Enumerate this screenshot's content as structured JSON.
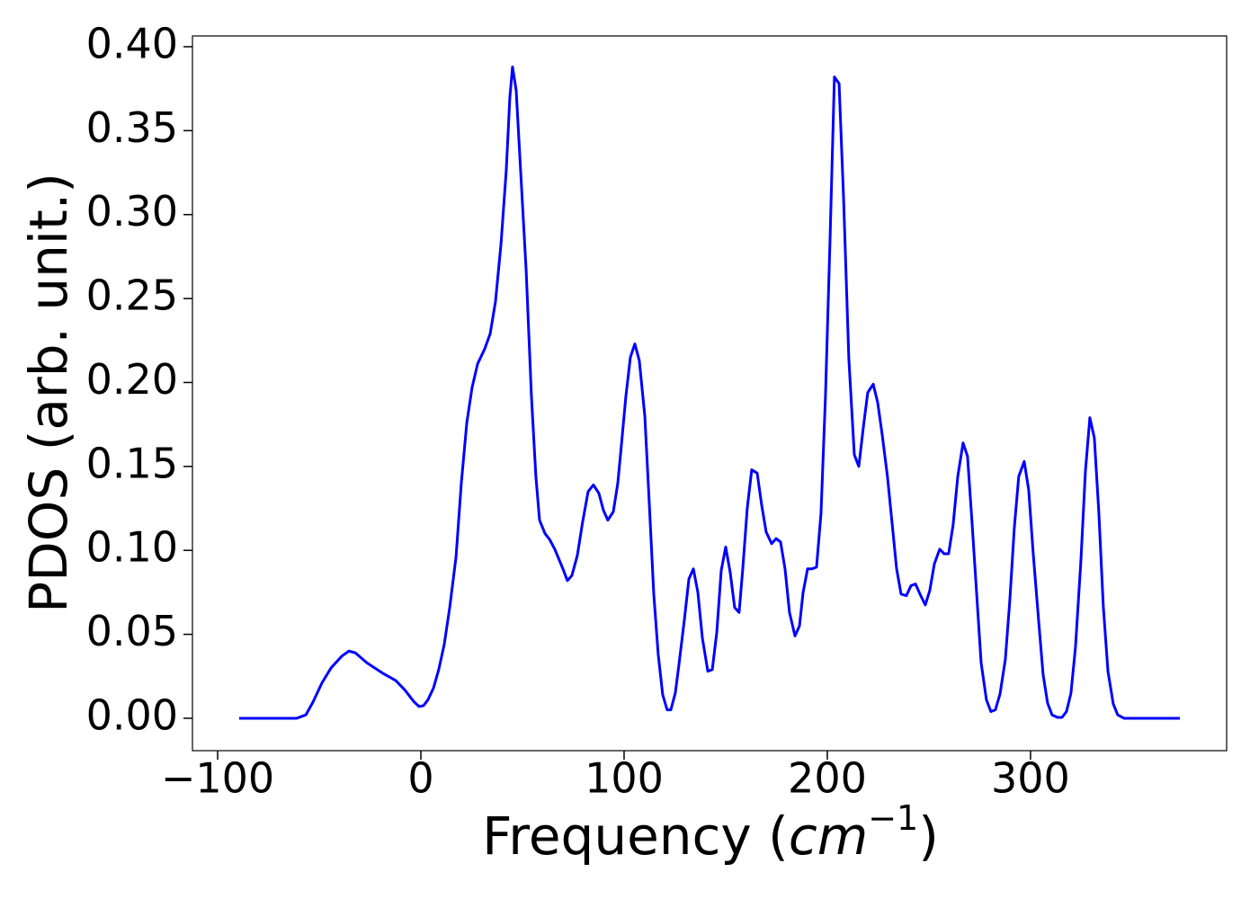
{
  "chart_data": {
    "type": "line",
    "xlabel": [
      "Frequency (",
      "cm",
      "−1",
      ")"
    ],
    "ylabel": "PDOS (arb. unit.)",
    "xlim": [
      -112.4,
      396.5
    ],
    "ylim": [
      -0.0193,
      0.4064
    ],
    "xticks": [
      {
        "value": -100,
        "label": "−100"
      },
      0,
      100,
      200,
      300
    ],
    "yticks": [
      {
        "value": 0,
        "label": "0.00"
      },
      {
        "value": 0.05,
        "label": "0.05"
      },
      {
        "value": 0.1,
        "label": "0.10"
      },
      {
        "value": 0.15,
        "label": "0.15"
      },
      {
        "value": 0.2,
        "label": "0.20"
      },
      {
        "value": 0.25,
        "label": "0.25"
      },
      {
        "value": 0.3,
        "label": "0.30"
      },
      {
        "value": 0.35,
        "label": "0.35"
      },
      {
        "value": 0.4,
        "label": "0.40"
      }
    ],
    "grid": false,
    "x": [
      -89.4,
      -61.1,
      -56.6,
      -53.1,
      -48.7,
      -44.2,
      -38.9,
      -35.4,
      -32.3,
      -26.5,
      -19.0,
      -12.4,
      -8.0,
      -3.5,
      -0.9,
      1.3,
      3.5,
      6.2,
      8.8,
      11.5,
      14.2,
      17.3,
      19.9,
      22.6,
      25.2,
      27.9,
      31.4,
      34.1,
      36.7,
      39.4,
      42.0,
      43.8,
      45.1,
      46.9,
      49.1,
      51.8,
      54.4,
      56.6,
      58.4,
      61.1,
      63.3,
      65.9,
      69.9,
      72.1,
      74.3,
      77.0,
      79.6,
      82.3,
      84.9,
      87.6,
      89.8,
      92.0,
      94.7,
      96.9,
      98.7,
      100.9,
      103.1,
      105.3,
      107.5,
      110.2,
      112.4,
      114.6,
      116.8,
      119.0,
      121.2,
      123.0,
      125.2,
      127.0,
      129.6,
      131.9,
      134.1,
      136.3,
      138.5,
      141.2,
      143.4,
      145.6,
      147.8,
      150.0,
      152.2,
      154.4,
      156.6,
      158.4,
      160.6,
      162.8,
      165.5,
      167.7,
      169.9,
      172.6,
      174.8,
      177.0,
      179.2,
      181.4,
      184.1,
      186.3,
      188.1,
      190.3,
      192.5,
      194.7,
      196.9,
      199.1,
      201.3,
      203.5,
      205.8,
      208.0,
      210.6,
      213.3,
      215.5,
      217.7,
      219.9,
      222.6,
      224.8,
      227.0,
      229.6,
      231.9,
      234.1,
      236.3,
      238.9,
      241.2,
      243.4,
      245.6,
      248.2,
      250.4,
      252.7,
      255.3,
      257.5,
      259.7,
      261.9,
      264.2,
      266.8,
      269.0,
      271.2,
      273.5,
      275.7,
      278.3,
      280.5,
      282.7,
      285.0,
      287.6,
      289.8,
      292.0,
      294.2,
      296.9,
      299.1,
      301.3,
      304.0,
      306.2,
      308.4,
      310.6,
      313.3,
      315.5,
      317.7,
      319.9,
      322.1,
      324.8,
      327.0,
      329.2,
      331.4,
      333.6,
      335.8,
      338.1,
      340.7,
      342.9,
      346.0,
      373.5
    ],
    "series": [
      {
        "color": "#0000ff",
        "values": [
          0,
          0,
          0.002,
          0.0096,
          0.021,
          0.03,
          0.037,
          0.04,
          0.039,
          0.033,
          0.027,
          0.0225,
          0.017,
          0.01,
          0.007,
          0.0075,
          0.011,
          0.018,
          0.029,
          0.044,
          0.066,
          0.096,
          0.14,
          0.176,
          0.197,
          0.211,
          0.22,
          0.229,
          0.248,
          0.282,
          0.326,
          0.37,
          0.388,
          0.374,
          0.326,
          0.267,
          0.192,
          0.144,
          0.118,
          0.11,
          0.1066,
          0.1007,
          0.089,
          0.082,
          0.085,
          0.097,
          0.117,
          0.135,
          0.139,
          0.134,
          0.124,
          0.118,
          0.123,
          0.14,
          0.163,
          0.192,
          0.215,
          0.223,
          0.213,
          0.18,
          0.128,
          0.074,
          0.038,
          0.014,
          0.005,
          0.005,
          0.015,
          0.032,
          0.058,
          0.083,
          0.089,
          0.075,
          0.048,
          0.028,
          0.029,
          0.051,
          0.088,
          0.102,
          0.087,
          0.066,
          0.063,
          0.089,
          0.125,
          0.148,
          0.146,
          0.127,
          0.111,
          0.104,
          0.107,
          0.105,
          0.089,
          0.063,
          0.049,
          0.055,
          0.075,
          0.089,
          0.089,
          0.09,
          0.122,
          0.192,
          0.283,
          0.382,
          0.378,
          0.31,
          0.214,
          0.157,
          0.15,
          0.173,
          0.194,
          0.199,
          0.188,
          0.169,
          0.144,
          0.116,
          0.089,
          0.074,
          0.073,
          0.079,
          0.08,
          0.074,
          0.0675,
          0.076,
          0.092,
          0.1007,
          0.098,
          0.098,
          0.115,
          0.144,
          0.164,
          0.156,
          0.117,
          0.074,
          0.033,
          0.011,
          0.004,
          0.005,
          0.0145,
          0.035,
          0.07,
          0.113,
          0.144,
          0.153,
          0.136,
          0.0985,
          0.058,
          0.026,
          0.009,
          0.002,
          0.0005,
          0.0005,
          0.004,
          0.015,
          0.042,
          0.094,
          0.147,
          0.179,
          0.167,
          0.123,
          0.067,
          0.028,
          0.0086,
          0.002,
          0,
          0
        ]
      }
    ]
  }
}
